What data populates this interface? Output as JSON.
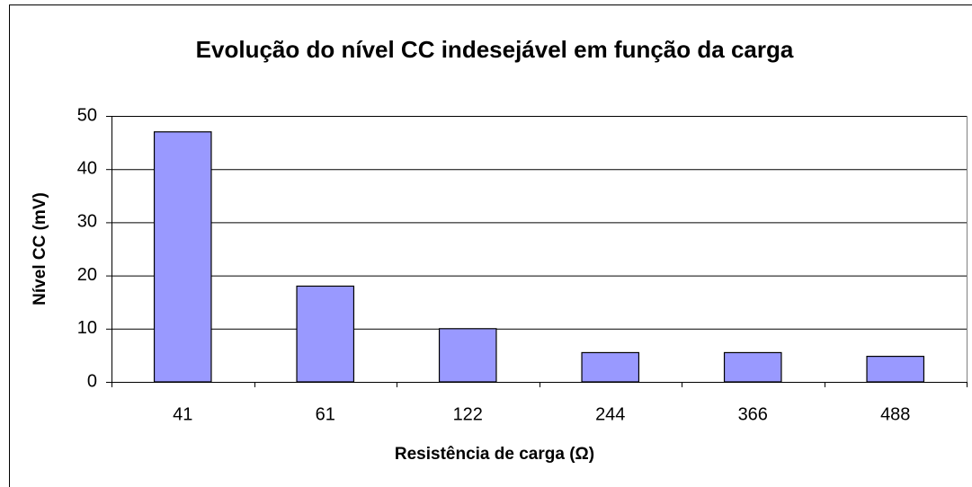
{
  "chart_data": {
    "type": "bar",
    "title": "Evolução do nível CC indesejável em função da carga",
    "xlabel": "Resistência de carga (Ω)",
    "ylabel": "Nível CC (mV)",
    "categories": [
      "41",
      "61",
      "122",
      "244",
      "366",
      "488"
    ],
    "values": [
      47,
      18,
      10,
      5.5,
      5.5,
      4.8
    ],
    "color": "#9999ff",
    "ylim": [
      0,
      50
    ],
    "yticks": [
      0,
      10,
      20,
      30,
      40,
      50
    ],
    "grid": true
  }
}
